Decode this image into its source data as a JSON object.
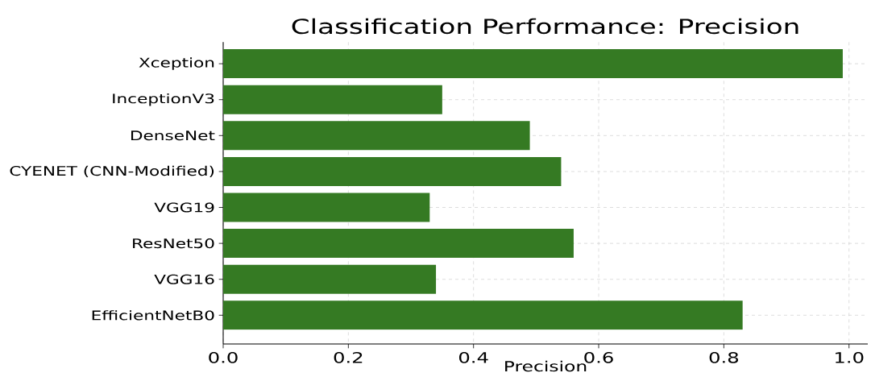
{
  "chart_data": {
    "type": "bar",
    "orientation": "horizontal",
    "title": "Classification Performance: Precision",
    "xlabel": "Precision",
    "categories": [
      "Xception",
      "InceptionV3",
      "DenseNet",
      "CYENET (CNN-Modified)",
      "VGG19",
      "ResNet50",
      "VGG16",
      "EfficientNetB0"
    ],
    "values": [
      0.99,
      0.35,
      0.49,
      0.54,
      0.33,
      0.56,
      0.34,
      0.83
    ],
    "color": "#357a23",
    "xlim": [
      0,
      1.03
    ],
    "xticks": [
      {
        "value": 0,
        "label": "0.0"
      },
      {
        "value": 0.2,
        "label": "0.2"
      },
      {
        "value": 0.4,
        "label": "0.4"
      },
      {
        "value": 0.6,
        "label": "0.6"
      },
      {
        "value": 0.8,
        "label": "0.8"
      },
      {
        "value": 1.0,
        "label": "1.0"
      }
    ],
    "grid": true
  }
}
